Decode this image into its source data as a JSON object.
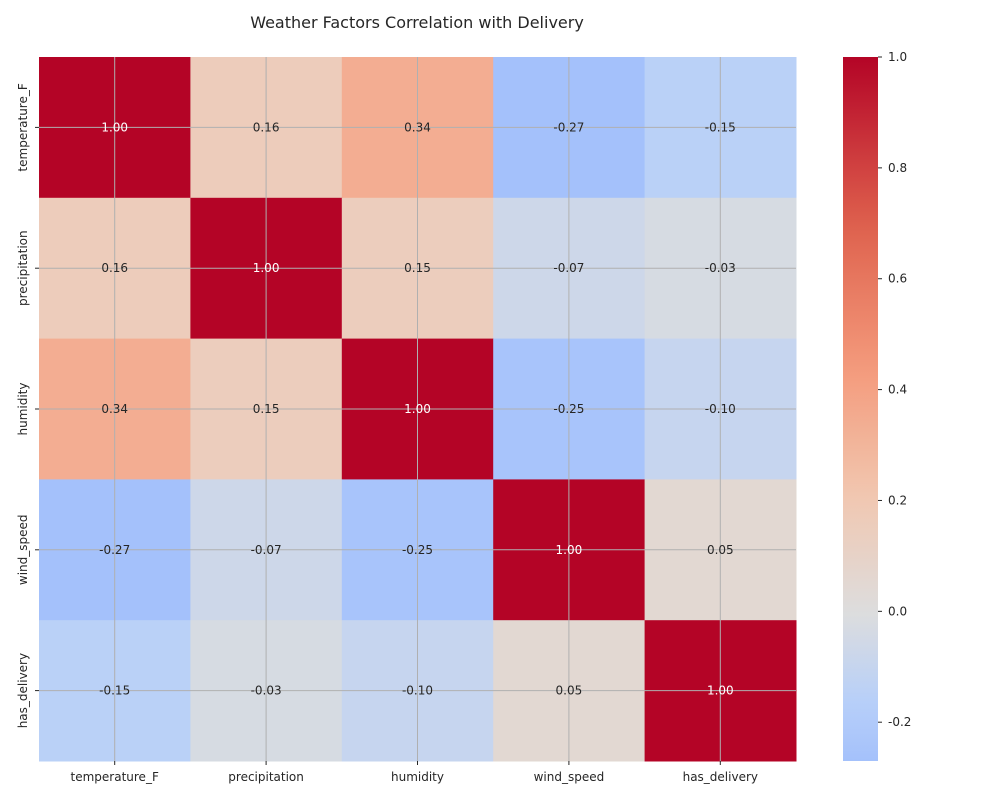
{
  "chart_data": {
    "type": "heatmap",
    "title": "Weather Factors Correlation with Delivery",
    "xlabel": "",
    "ylabel": "",
    "rows": [
      "temperature_F",
      "precipitation",
      "humidity",
      "wind_speed",
      "has_delivery"
    ],
    "columns": [
      "temperature_F",
      "precipitation",
      "humidity",
      "wind_speed",
      "has_delivery"
    ],
    "values": [
      [
        1.0,
        0.16,
        0.34,
        -0.27,
        -0.15
      ],
      [
        0.16,
        1.0,
        0.15,
        -0.07,
        -0.03
      ],
      [
        0.34,
        0.15,
        1.0,
        -0.25,
        -0.1
      ],
      [
        -0.27,
        -0.07,
        -0.25,
        1.0,
        0.05
      ],
      [
        -0.15,
        -0.03,
        -0.1,
        0.05,
        1.0
      ]
    ],
    "value_format": "0.00",
    "colormap": "coolwarm",
    "center": 0,
    "vmin": -0.27,
    "vmax": 1.0,
    "colorbar": {
      "ticks": [
        "-0.2",
        "0.0",
        "0.2",
        "0.4",
        "0.6",
        "0.8",
        "1.0"
      ],
      "tick_values": [
        -0.2,
        0.0,
        0.2,
        0.4,
        0.6,
        0.8,
        1.0
      ]
    },
    "grid": true,
    "colors": {
      "low": "#3b4cc0",
      "mid": "#dddddd",
      "high": "#b40426",
      "grid": "#b0b0b0"
    }
  }
}
